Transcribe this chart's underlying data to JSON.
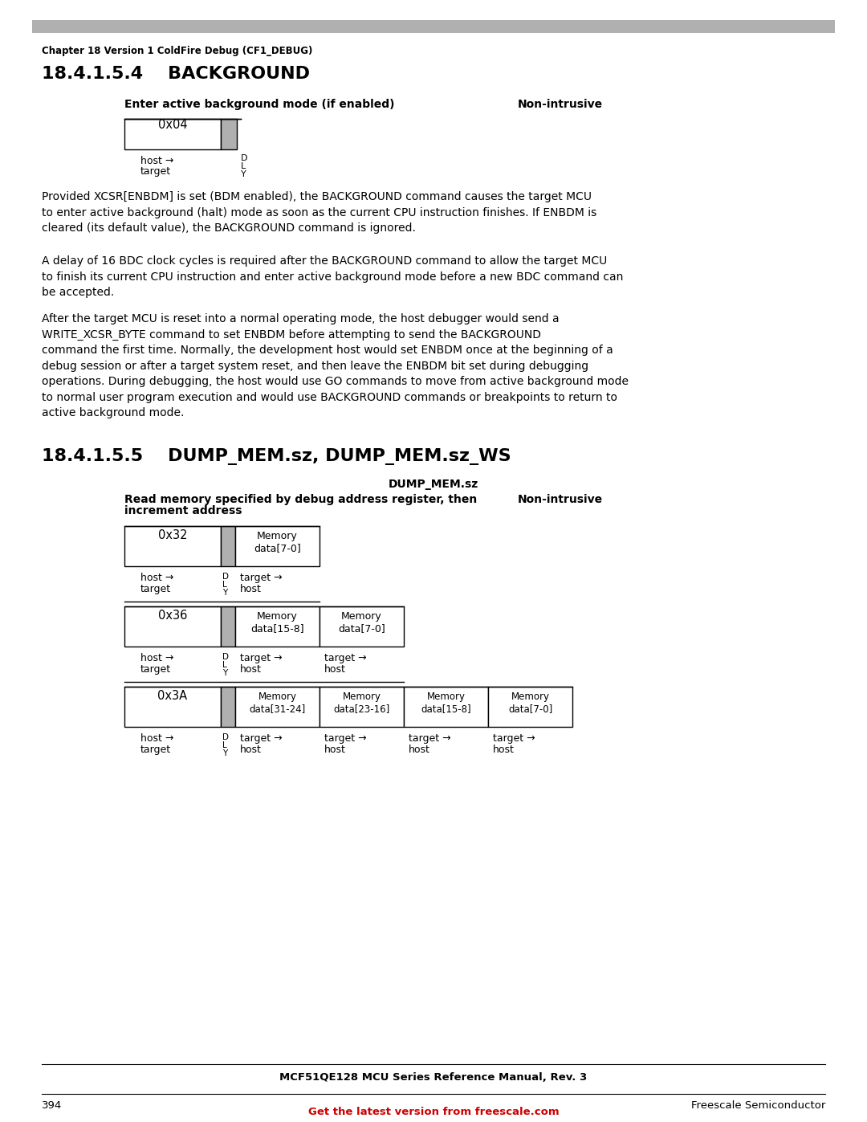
{
  "bg_color": "#ffffff",
  "header_bar_color": "#b0b0b0",
  "chapter_text": "Chapter 18 Version 1 ColdFire Debug (CF1_DEBUG)",
  "section1_title": "18.4.1.5.4    BACKGROUND",
  "section1_label_left": "Enter active background mode (if enabled)",
  "section1_label_right": "Non-intrusive",
  "section1_box1_text": "0x04",
  "para1": "Provided XCSR[ENBDM] is set (BDM enabled), the BACKGROUND command causes the target MCU\nto enter active background (halt) mode as soon as the current CPU instruction finishes. If ENBDM is\ncleared (its default value), the BACKGROUND command is ignored.",
  "para2": "A delay of 16 BDC clock cycles is required after the BACKGROUND command to allow the target MCU\nto finish its current CPU instruction and enter active background mode before a new BDC command can\nbe accepted.",
  "para3": "After the target MCU is reset into a normal operating mode, the host debugger would send a\nWRITE_XCSR_BYTE command to set ENBDM before attempting to send the BACKGROUND\ncommand the first time. Normally, the development host would set ENBDM once at the beginning of a\ndebug session or after a target system reset, and then leave the ENBDM bit set during debugging\noperations. During debugging, the host would use GO commands to move from active background mode\nto normal user program execution and would use BACKGROUND commands or breakpoints to return to\nactive background mode.",
  "section2_title": "18.4.1.5.5    DUMP_MEM.sz, DUMP_MEM.sz_WS",
  "dump_mem_label": "DUMP_MEM.sz",
  "dump_read_left_line1": "Read memory specified by debug address register, then",
  "dump_read_left_line2": "increment address",
  "dump_read_right": "Non-intrusive",
  "footer_text": "MCF51QE128 MCU Series Reference Manual, Rev. 3",
  "footer_page": "394",
  "footer_right": "Freescale Semiconductor",
  "footer_link": "Get the latest version from freescale.com",
  "gray_color": "#b0b0b0",
  "red_color": "#cc0000"
}
